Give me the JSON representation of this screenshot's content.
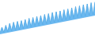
{
  "chart_data": {
    "type": "area",
    "color": "#6bb8f0",
    "series": [
      {
        "color": "#5aaee8",
        "values": [
          2.0,
          3.5,
          2.2,
          4.0,
          2.4,
          4.5,
          2.6,
          4.8,
          2.8,
          5.0,
          3.0,
          5.2,
          3.2,
          5.5,
          3.4,
          5.8,
          3.6,
          6.0,
          3.8,
          6.3,
          4.0,
          6.5,
          4.2,
          6.8,
          4.4,
          7.0,
          4.6,
          7.3,
          4.8,
          7.5,
          5.0,
          7.7,
          5.2,
          8.0,
          5.4,
          8.2,
          5.6,
          8.5,
          5.8,
          8.8,
          6.0,
          9.0,
          6.2,
          9.3,
          6.4,
          9.5,
          6.6,
          9.8,
          6.8,
          10.0
        ]
      }
    ],
    "baseline": [
      1.7,
      1.8,
      1.9,
      2.0,
      2.1,
      2.2,
      2.3,
      2.4,
      2.5,
      2.6,
      2.7,
      2.8,
      2.9,
      3.0,
      3.1,
      3.2,
      3.3,
      3.4,
      3.5,
      3.6,
      3.7,
      3.8,
      3.9,
      4.0,
      4.1,
      4.2,
      4.3,
      4.4,
      4.5,
      4.6,
      4.7,
      4.8,
      4.9,
      5.0,
      5.1,
      5.2,
      5.3,
      5.4,
      5.5,
      5.6,
      5.7,
      5.8,
      5.9,
      6.0,
      6.1,
      6.2,
      6.3,
      6.4,
      6.5,
      6.5
    ],
    "xlim": [
      0,
      49
    ],
    "ylim": [
      1.5,
      10.5
    ],
    "tick_labels": false,
    "grid": false
  }
}
